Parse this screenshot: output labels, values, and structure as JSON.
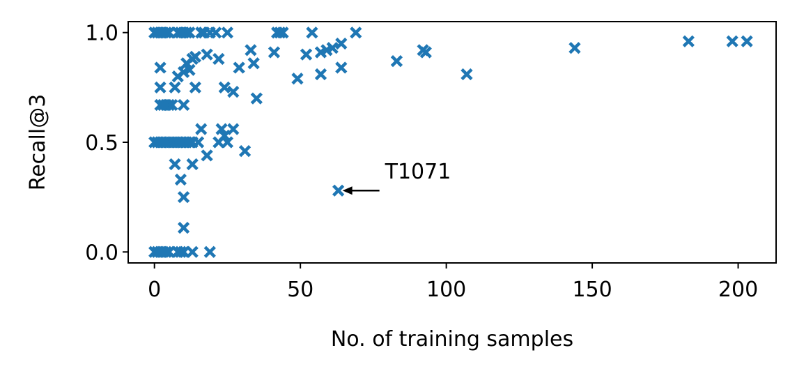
{
  "chart_data": {
    "type": "scatter",
    "title": "",
    "xlabel": "No. of training samples",
    "ylabel": "Recall@3",
    "xlim": [
      -9,
      213
    ],
    "ylim": [
      -0.05,
      1.05
    ],
    "xticks": [
      0,
      50,
      100,
      150,
      200
    ],
    "yticks": [
      0.0,
      0.5,
      1.0
    ],
    "xtick_labels": [
      "0",
      "50",
      "100",
      "150",
      "200"
    ],
    "ytick_labels": [
      "0.0",
      "0.5",
      "1.0"
    ],
    "grid": false,
    "legend": "none",
    "marker": "x",
    "color": "#1f77b4",
    "series": [
      {
        "points": [
          [
            0,
            1.0
          ],
          [
            1,
            1.0
          ],
          [
            2,
            1.0
          ],
          [
            3,
            1.0
          ],
          [
            4,
            1.0
          ],
          [
            5,
            1.0
          ],
          [
            8,
            1.0
          ],
          [
            9,
            1.0
          ],
          [
            10,
            1.0
          ],
          [
            11,
            1.0
          ],
          [
            12,
            1.0
          ],
          [
            16,
            1.0
          ],
          [
            17,
            1.0
          ],
          [
            19,
            1.0
          ],
          [
            21,
            1.0
          ],
          [
            25,
            1.0
          ],
          [
            42,
            1.0
          ],
          [
            43,
            1.0
          ],
          [
            44,
            1.0
          ],
          [
            54,
            1.0
          ],
          [
            69,
            1.0
          ],
          [
            2,
            0.84
          ],
          [
            2,
            0.75
          ],
          [
            7,
            0.75
          ],
          [
            8,
            0.8
          ],
          [
            10,
            0.82
          ],
          [
            11,
            0.86
          ],
          [
            12,
            0.83
          ],
          [
            13,
            0.88
          ],
          [
            14,
            0.75
          ],
          [
            14,
            0.89
          ],
          [
            18,
            0.9
          ],
          [
            22,
            0.88
          ],
          [
            24,
            0.75
          ],
          [
            27,
            0.73
          ],
          [
            29,
            0.84
          ],
          [
            33,
            0.92
          ],
          [
            34,
            0.86
          ],
          [
            35,
            0.7
          ],
          [
            41,
            0.91
          ],
          [
            49,
            0.79
          ],
          [
            52,
            0.9
          ],
          [
            57,
            0.91
          ],
          [
            57,
            0.81
          ],
          [
            59,
            0.92
          ],
          [
            61,
            0.93
          ],
          [
            64,
            0.95
          ],
          [
            64,
            0.84
          ],
          [
            83,
            0.87
          ],
          [
            92,
            0.92
          ],
          [
            93,
            0.91
          ],
          [
            107,
            0.81
          ],
          [
            144,
            0.93
          ],
          [
            183,
            0.96
          ],
          [
            198,
            0.96
          ],
          [
            203,
            0.96
          ],
          [
            2,
            0.67
          ],
          [
            3,
            0.67
          ],
          [
            4,
            0.67
          ],
          [
            5,
            0.67
          ],
          [
            6,
            0.67
          ],
          [
            10,
            0.67
          ],
          [
            0,
            0.5
          ],
          [
            1,
            0.5
          ],
          [
            2,
            0.5
          ],
          [
            3,
            0.5
          ],
          [
            4,
            0.5
          ],
          [
            5,
            0.5
          ],
          [
            6,
            0.5
          ],
          [
            7,
            0.5
          ],
          [
            8,
            0.5
          ],
          [
            9,
            0.5
          ],
          [
            10,
            0.5
          ],
          [
            11,
            0.5
          ],
          [
            12,
            0.5
          ],
          [
            13,
            0.5
          ],
          [
            15,
            0.5
          ],
          [
            22,
            0.5
          ],
          [
            25,
            0.5
          ],
          [
            16,
            0.56
          ],
          [
            23,
            0.56
          ],
          [
            27,
            0.56
          ],
          [
            24,
            0.53
          ],
          [
            18,
            0.44
          ],
          [
            31,
            0.46
          ],
          [
            13,
            0.4
          ],
          [
            7,
            0.4
          ],
          [
            9,
            0.33
          ],
          [
            10,
            0.25
          ],
          [
            10,
            0.11
          ],
          [
            63,
            0.28
          ],
          [
            0,
            0.0
          ],
          [
            1,
            0.0
          ],
          [
            2,
            0.0
          ],
          [
            3,
            0.0
          ],
          [
            4,
            0.0
          ],
          [
            5,
            0.0
          ],
          [
            8,
            0.0
          ],
          [
            9,
            0.0
          ],
          [
            10,
            0.0
          ],
          [
            13,
            0.0
          ],
          [
            19,
            0.0
          ]
        ]
      }
    ],
    "annotations": [
      {
        "text": "T1071",
        "point": [
          63,
          0.28
        ],
        "text_pos": [
          79,
          0.31
        ]
      }
    ]
  }
}
